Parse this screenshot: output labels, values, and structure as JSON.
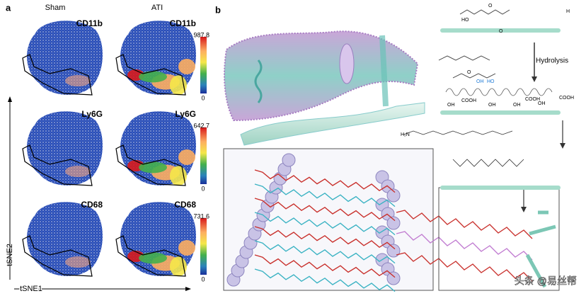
{
  "panel_a": {
    "label": "a",
    "columns": [
      "Sham",
      "ATI"
    ],
    "rows": [
      {
        "marker": "CD11b",
        "scale_max": 987.8,
        "scale_min": 0
      },
      {
        "marker": "Ly6G",
        "scale_max": 642.7,
        "scale_min": 0
      },
      {
        "marker": "CD68",
        "scale_max": 731.6,
        "scale_min": 0
      }
    ],
    "y_axis_label": "tSNE2",
    "x_axis_label": "tSNE1"
  },
  "panel_b": {
    "label": "b",
    "arrow_label": "Hydrolysis",
    "chem_labels": [
      "HO",
      "H",
      "O",
      "O",
      "O",
      "OH",
      "HO",
      "OH",
      "OH",
      "OH",
      "OH",
      "COOH",
      "COOH",
      "COOH",
      "H₂N"
    ]
  },
  "watermark": "头条 @易丝帮"
}
